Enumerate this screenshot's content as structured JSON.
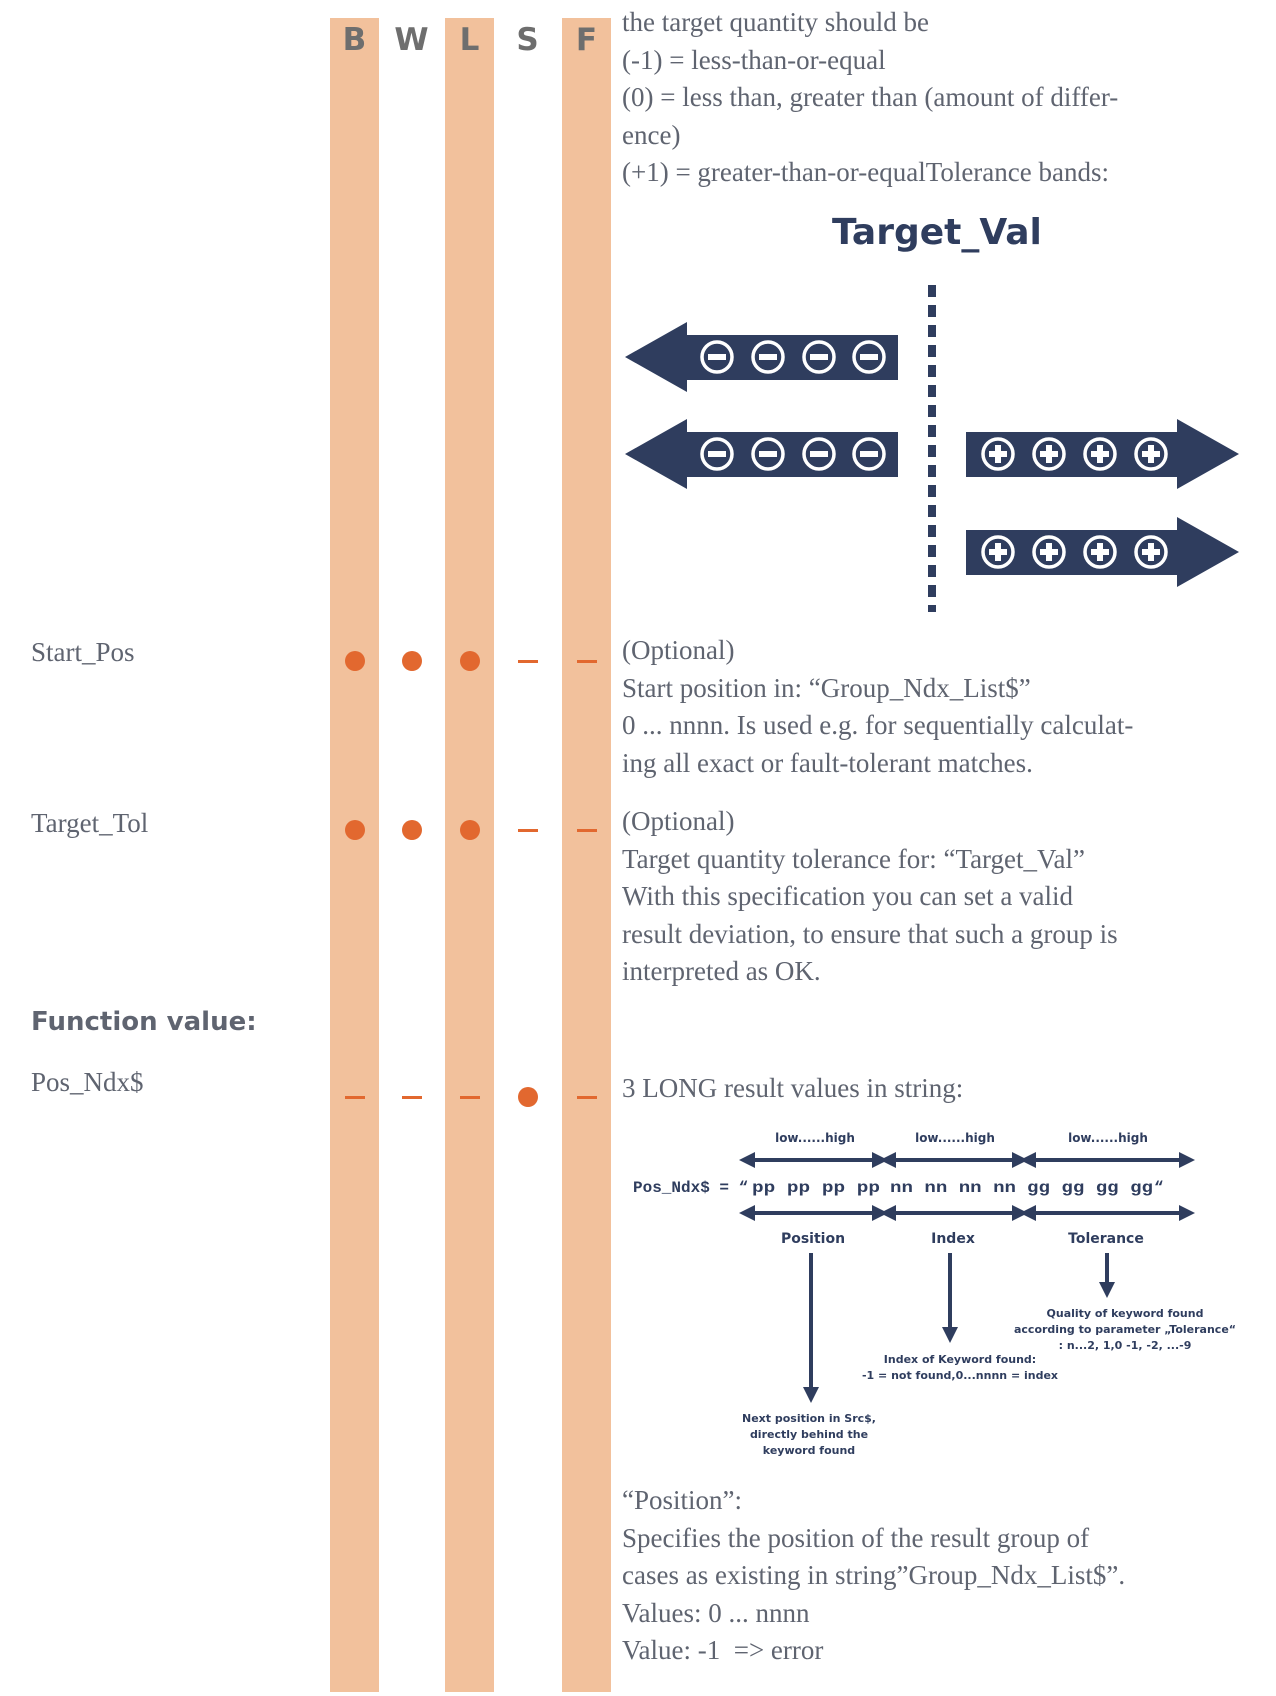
{
  "columns": [
    "B",
    "W",
    "L",
    "S",
    "F"
  ],
  "intro_lines": [
    "the target quantity should be",
    "(-1) = less-than-or-equal",
    "(0) = less than, greater than (amount of differ-",
    "ence)",
    "(+1) = greater-than-or-equalTolerance bands:"
  ],
  "target_diagram": {
    "title": "Target_Val",
    "minus_icon": "minus-circle-icon",
    "plus_icon": "plus-circle-icon"
  },
  "params": [
    {
      "name": "Start_Pos",
      "marks": [
        "dot",
        "dot",
        "dot",
        "dash",
        "dash"
      ],
      "desc": [
        "(Optional)",
        "Start position in: “Group_Ndx_List$”",
        "0 ... nnnn. Is used e.g. for sequentially calculat-",
        "ing all exact or fault-tolerant matches."
      ]
    },
    {
      "name": "Target_Tol",
      "marks": [
        "dot",
        "dot",
        "dot",
        "dash",
        "dash"
      ],
      "desc": [
        "(Optional)",
        "Target quantity tolerance for: “Target_Val”",
        "With this specification you can set a valid",
        "result deviation, to ensure that such a group is",
        "interpreted as OK."
      ]
    }
  ],
  "function_value": {
    "title": "Function value:",
    "name": "Pos_Ndx$",
    "marks": [
      "dash",
      "dash",
      "dash",
      "dot",
      "dash"
    ],
    "desc": "3 LONG result values in string:"
  },
  "result_diagram": {
    "range_label": "low......high",
    "prefix": "Pos_Ndx$ = “",
    "groups": [
      "pp pp pp pp",
      "nn nn nn nn",
      "gg gg gg gg"
    ],
    "suffix": "“",
    "group_labels": [
      "Position",
      "Index",
      "Tolerance"
    ],
    "position_note": [
      "Next position in Src$,",
      "directly behind the",
      "keyword found"
    ],
    "index_note": [
      "Index of Keyword found:",
      "-1 = not found,0...nnnn = index"
    ],
    "tolerance_note": [
      "Quality of keyword found",
      "according to parameter „Tolerance“",
      ": n...2, 1,0 -1, -2, ...-9"
    ]
  },
  "position_desc": [
    "“Position”:",
    "Specifies the position of the result group of",
    "cases as existing in string”Group_Ndx_List$”.",
    "Values: 0 ... nnnn",
    "Value: -1  => error"
  ]
}
